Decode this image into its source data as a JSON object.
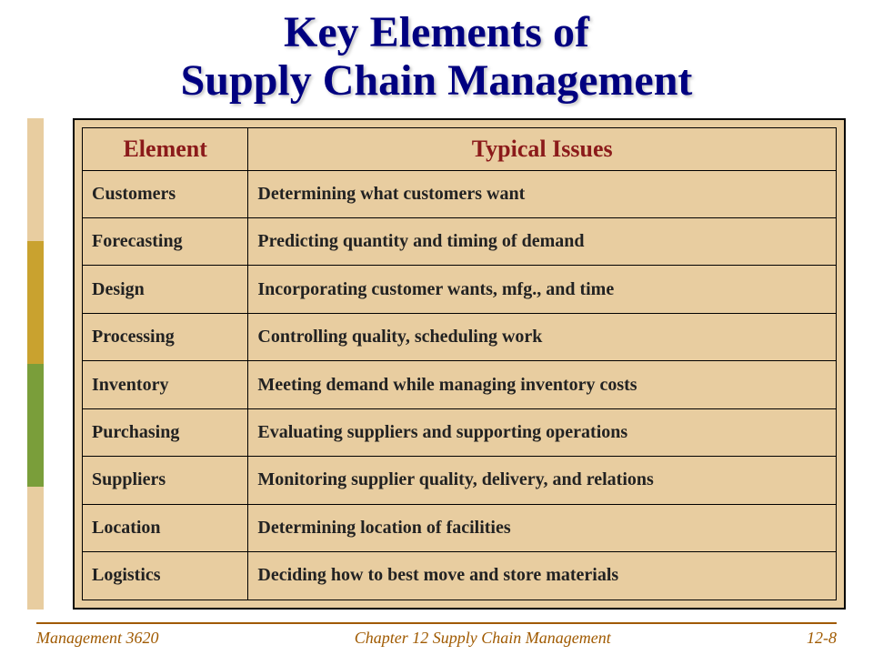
{
  "title_line1": "Key Elements of",
  "title_line2": "Supply Chain Management",
  "title_color": "#000080",
  "accent_colors": [
    "#e8cda0",
    "#c9a22f",
    "#7a9e3a",
    "#e8cda0"
  ],
  "table": {
    "bg_color": "#e8cda0",
    "border_color": "#000000",
    "header_color": "#8b1a1a",
    "text_color": "#222222",
    "header_fontsize": 26,
    "cell_fontsize": 20,
    "columns": [
      "Element",
      "Typical Issues"
    ],
    "rows": [
      [
        "Customers",
        "Determining what customers want"
      ],
      [
        "Forecasting",
        "Predicting quantity and timing of demand"
      ],
      [
        "Design",
        "Incorporating customer wants, mfg., and time"
      ],
      [
        "Processing",
        "Controlling quality, scheduling work"
      ],
      [
        "Inventory",
        "Meeting demand while managing inventory costs"
      ],
      [
        "Purchasing",
        "Evaluating suppliers and supporting operations"
      ],
      [
        "Suppliers",
        "Monitoring supplier quality, delivery, and relations"
      ],
      [
        "Location",
        "Determining location of facilities"
      ],
      [
        "Logistics",
        "Deciding how to best move and store materials"
      ]
    ]
  },
  "footer": {
    "left": "Management 3620",
    "center": "Chapter 12 Supply Chain Management",
    "right": "12-8",
    "color": "#a05a00",
    "fontsize": 18
  }
}
